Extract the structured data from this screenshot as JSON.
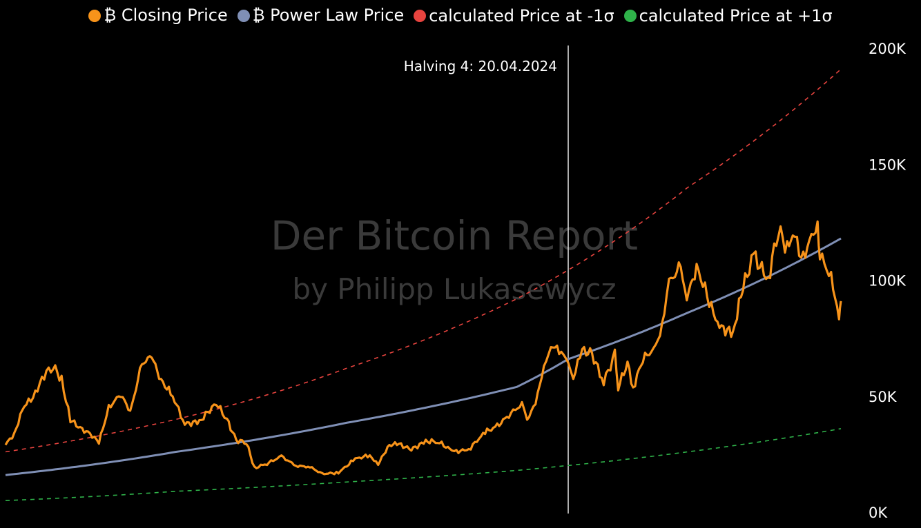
{
  "chart_data": {
    "type": "line",
    "title": "",
    "xlabel": "",
    "ylabel": "",
    "ylim": [
      0,
      200000
    ],
    "y_ticks": [
      {
        "value": 0,
        "label": "0K"
      },
      {
        "value": 50000,
        "label": "50K"
      },
      {
        "value": 100000,
        "label": "100K"
      },
      {
        "value": 150000,
        "label": "150K"
      },
      {
        "value": 200000,
        "label": "200K"
      }
    ],
    "legend_placement": "top-center",
    "grid": false,
    "watermark": {
      "line1": "Der Bitcoin Report",
      "line2": "by Philipp Lukasewycz"
    },
    "annotations": [
      {
        "label": "Halving 4: 20.04.2024",
        "date": "2024-04-20"
      }
    ],
    "x_range": [
      "2021-01-01",
      "2025-11-25"
    ],
    "series": [
      {
        "name": "₿ Closing Price",
        "color": "#f7931a",
        "style": "solid",
        "points": [
          [
            "2021-01-01",
            29000
          ],
          [
            "2021-01-20",
            34000
          ],
          [
            "2021-02-10",
            46000
          ],
          [
            "2021-03-01",
            49000
          ],
          [
            "2021-03-20",
            58000
          ],
          [
            "2021-04-13",
            63000
          ],
          [
            "2021-05-01",
            57000
          ],
          [
            "2021-05-20",
            40000
          ],
          [
            "2021-06-10",
            36000
          ],
          [
            "2021-07-01",
            34000
          ],
          [
            "2021-07-20",
            30000
          ],
          [
            "2021-08-10",
            45000
          ],
          [
            "2021-09-05",
            51000
          ],
          [
            "2021-09-25",
            43000
          ],
          [
            "2021-10-20",
            64000
          ],
          [
            "2021-11-10",
            67000
          ],
          [
            "2021-11-30",
            57000
          ],
          [
            "2021-12-25",
            50000
          ],
          [
            "2022-01-20",
            38000
          ],
          [
            "2022-02-20",
            39000
          ],
          [
            "2022-03-28",
            47000
          ],
          [
            "2022-04-20",
            40000
          ],
          [
            "2022-05-10",
            31000
          ],
          [
            "2022-06-01",
            30000
          ],
          [
            "2022-06-18",
            19000
          ],
          [
            "2022-07-15",
            21000
          ],
          [
            "2022-08-15",
            24000
          ],
          [
            "2022-09-15",
            20000
          ],
          [
            "2022-10-15",
            19500
          ],
          [
            "2022-11-10",
            16500
          ],
          [
            "2022-12-15",
            17000
          ],
          [
            "2023-01-20",
            23000
          ],
          [
            "2023-02-20",
            24500
          ],
          [
            "2023-03-10",
            20500
          ],
          [
            "2023-03-30",
            28000
          ],
          [
            "2023-04-15",
            30000
          ],
          [
            "2023-05-20",
            27000
          ],
          [
            "2023-06-20",
            30500
          ],
          [
            "2023-07-15",
            30500
          ],
          [
            "2023-08-20",
            26000
          ],
          [
            "2023-09-20",
            27000
          ],
          [
            "2023-10-25",
            34500
          ],
          [
            "2023-11-20",
            37000
          ],
          [
            "2023-12-15",
            42000
          ],
          [
            "2024-01-12",
            46500
          ],
          [
            "2024-01-23",
            40000
          ],
          [
            "2024-02-10",
            47000
          ],
          [
            "2024-02-28",
            62000
          ],
          [
            "2024-03-14",
            72000
          ],
          [
            "2024-04-05",
            69000
          ],
          [
            "2024-04-20",
            64000
          ],
          [
            "2024-05-01",
            58000
          ],
          [
            "2024-05-20",
            70000
          ],
          [
            "2024-06-10",
            68000
          ],
          [
            "2024-07-05",
            56000
          ],
          [
            "2024-07-29",
            68000
          ],
          [
            "2024-08-05",
            54000
          ],
          [
            "2024-08-25",
            64000
          ],
          [
            "2024-09-06",
            53500
          ],
          [
            "2024-09-27",
            66000
          ],
          [
            "2024-10-29",
            72000
          ],
          [
            "2024-11-12",
            88000
          ],
          [
            "2024-11-22",
            99000
          ],
          [
            "2024-12-17",
            106000
          ],
          [
            "2024-12-30",
            92000
          ],
          [
            "2025-01-20",
            106000
          ],
          [
            "2025-02-25",
            86000
          ],
          [
            "2025-03-10",
            80000
          ],
          [
            "2025-04-08",
            77000
          ],
          [
            "2025-04-25",
            94000
          ],
          [
            "2025-05-22",
            111000
          ],
          [
            "2025-06-22",
            100000
          ],
          [
            "2025-07-14",
            122000
          ],
          [
            "2025-08-02",
            113000
          ],
          [
            "2025-08-14",
            123000
          ],
          [
            "2025-09-01",
            108000
          ],
          [
            "2025-10-06",
            125000
          ],
          [
            "2025-10-11",
            111000
          ],
          [
            "2025-11-04",
            101000
          ],
          [
            "2025-11-21",
            85000
          ],
          [
            "2025-11-25",
            91000
          ]
        ]
      },
      {
        "name": "₿ Power Law Price",
        "color": "#7f8fb5",
        "style": "solid",
        "points": [
          [
            "2021-01-01",
            16000
          ],
          [
            "2022-01-01",
            26000
          ],
          [
            "2023-01-01",
            38500
          ],
          [
            "2024-01-01",
            54000
          ],
          [
            "2024-04-20",
            66000
          ],
          [
            "2025-01-01",
            86000
          ],
          [
            "2025-11-25",
            118000
          ]
        ]
      },
      {
        "name": "calculated Price at -1σ",
        "color": "#e8443f",
        "style": "dashed",
        "points": [
          [
            "2021-01-01",
            26000
          ],
          [
            "2022-01-01",
            40000
          ],
          [
            "2023-01-01",
            62000
          ],
          [
            "2024-01-01",
            92000
          ],
          [
            "2025-01-01",
            140000
          ],
          [
            "2025-11-25",
            191000
          ]
        ]
      },
      {
        "name": "calculated Price at +1σ",
        "color": "#2fb34a",
        "style": "dashed",
        "points": [
          [
            "2021-01-01",
            5000
          ],
          [
            "2022-01-01",
            9000
          ],
          [
            "2023-01-01",
            13000
          ],
          [
            "2024-01-01",
            18000
          ],
          [
            "2025-01-01",
            26000
          ],
          [
            "2025-11-25",
            36000
          ]
        ]
      }
    ]
  }
}
